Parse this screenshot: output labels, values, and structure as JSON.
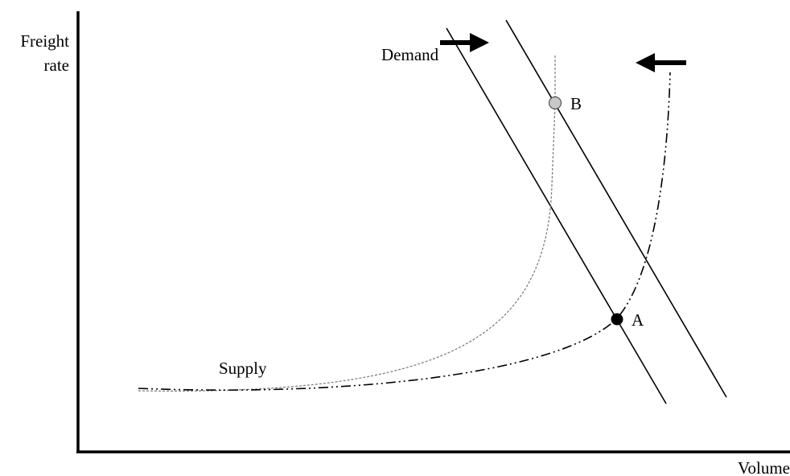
{
  "y_axis_label": [
    "Freight",
    "rate"
  ],
  "x_axis_label": "Volume",
  "demand_label": "Demand",
  "supply_label": "Supply",
  "points": [
    {
      "label": "A"
    },
    {
      "label": "B"
    }
  ]
}
